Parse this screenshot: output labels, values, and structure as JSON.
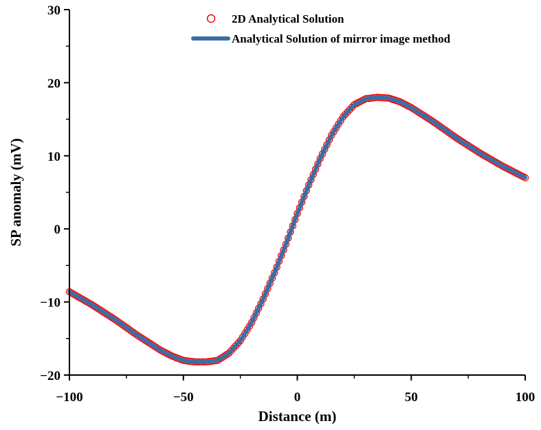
{
  "chart_data": {
    "type": "line",
    "title": "",
    "xlabel": "Distance (m)",
    "ylabel": "SP anomaly (mV)",
    "xlim": [
      -100,
      100
    ],
    "ylim": [
      -20,
      30
    ],
    "x_ticks": [
      -100,
      -50,
      0,
      50,
      100
    ],
    "x_tick_labels": [
      "−100",
      "−50",
      "0",
      "50",
      "100"
    ],
    "y_ticks": [
      -20,
      -10,
      0,
      10,
      20,
      30
    ],
    "y_tick_labels": [
      "−20",
      "−10",
      "0",
      "10",
      "20",
      "30"
    ],
    "grid": false,
    "legend_position": "top-right",
    "series": [
      {
        "name": "2D Analytical Solution",
        "style": "markers",
        "marker": "open-circle",
        "color": "#ff0000",
        "x": [
          -100,
          -95,
          -90,
          -85,
          -80,
          -75,
          -70,
          -65,
          -60,
          -55,
          -50,
          -45,
          -40,
          -35,
          -30,
          -25,
          -20,
          -15,
          -10,
          -5,
          0,
          5,
          10,
          15,
          20,
          25,
          30,
          35,
          40,
          45,
          50,
          55,
          60,
          65,
          70,
          75,
          80,
          85,
          90,
          95,
          100
        ],
        "y": [
          -8.6,
          -9.5,
          -10.4,
          -11.4,
          -12.4,
          -13.5,
          -14.6,
          -15.6,
          -16.6,
          -17.4,
          -18.0,
          -18.2,
          -18.2,
          -18.0,
          -17.0,
          -15.3,
          -12.8,
          -9.6,
          -6.0,
          -2.1,
          2.1,
          6.0,
          9.6,
          12.8,
          15.3,
          17.0,
          17.8,
          18.0,
          17.9,
          17.4,
          16.6,
          15.6,
          14.6,
          13.5,
          12.4,
          11.4,
          10.4,
          9.5,
          8.6,
          7.8,
          7.0
        ]
      },
      {
        "name": "Analytical Solution of mirror image method",
        "style": "line",
        "color": "#3a6ea5",
        "x": [
          -100,
          -95,
          -90,
          -85,
          -80,
          -75,
          -70,
          -65,
          -60,
          -55,
          -50,
          -45,
          -40,
          -35,
          -30,
          -25,
          -20,
          -15,
          -10,
          -5,
          0,
          5,
          10,
          15,
          20,
          25,
          30,
          35,
          40,
          45,
          50,
          55,
          60,
          65,
          70,
          75,
          80,
          85,
          90,
          95,
          100
        ],
        "y": [
          -8.6,
          -9.5,
          -10.4,
          -11.4,
          -12.4,
          -13.5,
          -14.6,
          -15.6,
          -16.6,
          -17.4,
          -18.0,
          -18.2,
          -18.2,
          -18.0,
          -17.0,
          -15.3,
          -12.8,
          -9.6,
          -6.0,
          -2.1,
          2.1,
          6.0,
          9.6,
          12.8,
          15.3,
          17.0,
          17.8,
          18.0,
          17.9,
          17.4,
          16.6,
          15.6,
          14.6,
          13.5,
          12.4,
          11.4,
          10.4,
          9.5,
          8.6,
          7.8,
          7.0
        ]
      }
    ]
  }
}
